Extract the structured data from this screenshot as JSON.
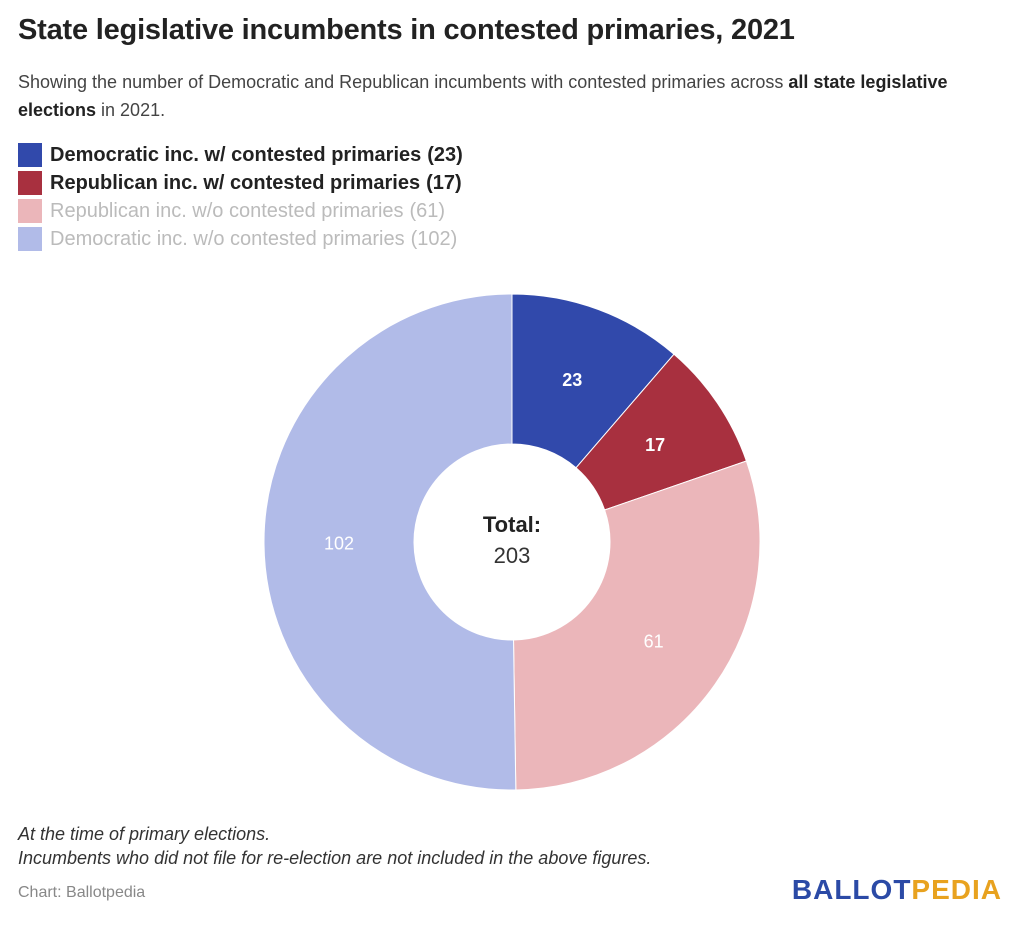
{
  "title": "State legislative incumbents in contested primaries, 2021",
  "subtitle": {
    "before": "Showing the number of Democratic and Republican incumbents with contested primaries across ",
    "bold": "all state legislative elections",
    "after": " in 2021."
  },
  "chart_data": {
    "type": "pie",
    "donut": true,
    "center_label": {
      "title": "Total:",
      "value": "203"
    },
    "legend_placement": "top-left",
    "slices": [
      {
        "name": "Democratic inc. w/ contested primaries",
        "value": 23,
        "color": "#3149ab",
        "label_color": "#ffffff",
        "label_bold": true,
        "active": true
      },
      {
        "name": "Republican inc. w/ contested primaries",
        "value": 17,
        "color": "#a8303f",
        "label_color": "#ffffff",
        "label_bold": true,
        "active": true
      },
      {
        "name": "Republican inc. w/o contested primaries",
        "value": 61,
        "color": "#ebb6ba",
        "label_color": "#ffffff",
        "label_bold": false,
        "active": false
      },
      {
        "name": "Democratic inc. w/o contested primaries",
        "value": 102,
        "color": "#b1bbe8",
        "label_color": "#ffffff",
        "label_bold": false,
        "active": false
      }
    ]
  },
  "notes": [
    "At the time of primary elections.",
    "Incumbents who did not file for re-election are not included in the above figures."
  ],
  "source": "Chart: Ballotpedia",
  "logo": {
    "part1": "BALLOT",
    "part2": "PEDIA",
    "color1": "#2b4aa6",
    "color2": "#e8a21f"
  }
}
